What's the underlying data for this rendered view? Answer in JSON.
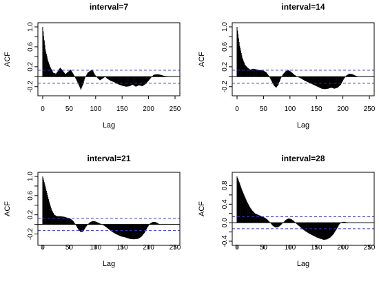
{
  "chart_data": [
    {
      "type": "bar",
      "title": "interval=7",
      "xlabel": "Lag",
      "ylabel": "ACF",
      "xlim": [
        0,
        250
      ],
      "ylim": [
        -0.3,
        1.0
      ],
      "xticks": [
        0,
        50,
        100,
        150,
        200,
        250
      ],
      "yticks": [
        -0.2,
        0.2,
        0.6,
        1.0
      ],
      "yticks_minor": [
        0.0,
        0.4,
        0.8
      ],
      "ci": 0.13,
      "x_max": 240,
      "keypoints": [
        [
          0,
          1.0
        ],
        [
          2,
          0.82
        ],
        [
          5,
          0.55
        ],
        [
          10,
          0.32
        ],
        [
          14,
          0.2
        ],
        [
          20,
          0.08
        ],
        [
          25,
          0.06
        ],
        [
          28,
          0.1
        ],
        [
          33,
          0.18
        ],
        [
          38,
          0.12
        ],
        [
          43,
          0.05
        ],
        [
          48,
          0.1
        ],
        [
          53,
          0.14
        ],
        [
          58,
          0.05
        ],
        [
          63,
          -0.05
        ],
        [
          68,
          -0.16
        ],
        [
          72,
          -0.26
        ],
        [
          76,
          -0.16
        ],
        [
          80,
          -0.02
        ],
        [
          85,
          0.08
        ],
        [
          90,
          0.12
        ],
        [
          94,
          0.14
        ],
        [
          98,
          0.05
        ],
        [
          103,
          -0.02
        ],
        [
          108,
          -0.07
        ],
        [
          113,
          -0.04
        ],
        [
          118,
          0.0
        ],
        [
          122,
          -0.04
        ],
        [
          128,
          -0.08
        ],
        [
          135,
          -0.11
        ],
        [
          142,
          -0.15
        ],
        [
          150,
          -0.18
        ],
        [
          158,
          -0.2
        ],
        [
          164,
          -0.19
        ],
        [
          170,
          -0.16
        ],
        [
          176,
          -0.2
        ],
        [
          182,
          -0.17
        ],
        [
          188,
          -0.19
        ],
        [
          194,
          -0.15
        ],
        [
          200,
          -0.08
        ],
        [
          206,
          0.0
        ],
        [
          210,
          0.04
        ],
        [
          216,
          0.05
        ],
        [
          222,
          0.04
        ],
        [
          228,
          0.02
        ],
        [
          234,
          0.01
        ],
        [
          240,
          0.0
        ]
      ]
    },
    {
      "type": "bar",
      "title": "interval=14",
      "xlabel": "Lag",
      "ylabel": "ACF",
      "xlim": [
        0,
        250
      ],
      "ylim": [
        -0.3,
        1.0
      ],
      "xticks": [
        0,
        50,
        100,
        150,
        200,
        250
      ],
      "yticks": [
        -0.2,
        0.2,
        0.6,
        1.0
      ],
      "yticks_minor": [
        0.0,
        0.4,
        0.8
      ],
      "ci": 0.13,
      "x_max": 230,
      "keypoints": [
        [
          0,
          1.0
        ],
        [
          2,
          0.85
        ],
        [
          5,
          0.62
        ],
        [
          10,
          0.38
        ],
        [
          15,
          0.24
        ],
        [
          20,
          0.18
        ],
        [
          25,
          0.14
        ],
        [
          30,
          0.16
        ],
        [
          35,
          0.15
        ],
        [
          40,
          0.14
        ],
        [
          45,
          0.13
        ],
        [
          50,
          0.12
        ],
        [
          55,
          0.09
        ],
        [
          60,
          0.02
        ],
        [
          65,
          -0.08
        ],
        [
          70,
          -0.18
        ],
        [
          74,
          -0.22
        ],
        [
          78,
          -0.16
        ],
        [
          82,
          -0.05
        ],
        [
          87,
          0.05
        ],
        [
          92,
          0.11
        ],
        [
          97,
          0.13
        ],
        [
          102,
          0.1
        ],
        [
          108,
          0.04
        ],
        [
          114,
          0.0
        ],
        [
          120,
          -0.03
        ],
        [
          128,
          -0.08
        ],
        [
          136,
          -0.12
        ],
        [
          144,
          -0.16
        ],
        [
          152,
          -0.2
        ],
        [
          160,
          -0.24
        ],
        [
          166,
          -0.25
        ],
        [
          172,
          -0.24
        ],
        [
          178,
          -0.22
        ],
        [
          184,
          -0.24
        ],
        [
          190,
          -0.22
        ],
        [
          196,
          -0.16
        ],
        [
          201,
          -0.06
        ],
        [
          206,
          0.02
        ],
        [
          212,
          0.06
        ],
        [
          218,
          0.05
        ],
        [
          224,
          0.02
        ],
        [
          230,
          0.0
        ]
      ]
    },
    {
      "type": "bar",
      "title": "interval=21",
      "xlabel": "Lag",
      "ylabel": "ACF",
      "xlim": [
        0,
        250
      ],
      "ylim": [
        -0.35,
        1.0
      ],
      "xticks": [
        0,
        50,
        100,
        150,
        200,
        250
      ],
      "yticks": [
        -0.2,
        0.2,
        0.6,
        1.0
      ],
      "yticks_minor": [
        0.0,
        0.4,
        0.8
      ],
      "ci": 0.13,
      "x_max": 222,
      "keypoints": [
        [
          0,
          1.0
        ],
        [
          3,
          0.88
        ],
        [
          7,
          0.7
        ],
        [
          12,
          0.48
        ],
        [
          17,
          0.3
        ],
        [
          22,
          0.2
        ],
        [
          27,
          0.17
        ],
        [
          33,
          0.17
        ],
        [
          40,
          0.16
        ],
        [
          46,
          0.14
        ],
        [
          52,
          0.12
        ],
        [
          57,
          0.08
        ],
        [
          62,
          0.0
        ],
        [
          67,
          -0.1
        ],
        [
          72,
          -0.16
        ],
        [
          76,
          -0.15
        ],
        [
          80,
          -0.08
        ],
        [
          85,
          0.0
        ],
        [
          90,
          0.05
        ],
        [
          95,
          0.07
        ],
        [
          100,
          0.06
        ],
        [
          106,
          0.03
        ],
        [
          112,
          0.0
        ],
        [
          118,
          -0.04
        ],
        [
          125,
          -0.1
        ],
        [
          132,
          -0.16
        ],
        [
          140,
          -0.21
        ],
        [
          148,
          -0.25
        ],
        [
          156,
          -0.27
        ],
        [
          164,
          -0.3
        ],
        [
          172,
          -0.31
        ],
        [
          180,
          -0.3
        ],
        [
          186,
          -0.26
        ],
        [
          192,
          -0.18
        ],
        [
          198,
          -0.06
        ],
        [
          203,
          0.02
        ],
        [
          208,
          0.05
        ],
        [
          213,
          0.05
        ],
        [
          218,
          0.02
        ],
        [
          222,
          0.0
        ]
      ]
    },
    {
      "type": "bar",
      "title": "interval=28",
      "xlabel": "Lag",
      "ylabel": "ACF",
      "xlim": [
        0,
        250
      ],
      "ylim": [
        -0.4,
        1.0
      ],
      "xticks": [
        0,
        50,
        100,
        150,
        200,
        250
      ],
      "yticks": [
        -0.4,
        0.0,
        0.4,
        0.8
      ],
      "yticks_minor": [
        -0.2,
        0.2,
        0.6
      ],
      "ci": 0.13,
      "x_max": 212,
      "keypoints": [
        [
          0,
          1.0
        ],
        [
          4,
          0.88
        ],
        [
          9,
          0.72
        ],
        [
          14,
          0.58
        ],
        [
          19,
          0.45
        ],
        [
          24,
          0.34
        ],
        [
          29,
          0.26
        ],
        [
          34,
          0.2
        ],
        [
          40,
          0.17
        ],
        [
          46,
          0.14
        ],
        [
          52,
          0.11
        ],
        [
          57,
          0.07
        ],
        [
          62,
          0.01
        ],
        [
          67,
          -0.06
        ],
        [
          72,
          -0.1
        ],
        [
          77,
          -0.1
        ],
        [
          82,
          -0.06
        ],
        [
          87,
          0.0
        ],
        [
          92,
          0.06
        ],
        [
          97,
          0.09
        ],
        [
          102,
          0.08
        ],
        [
          107,
          0.04
        ],
        [
          112,
          -0.02
        ],
        [
          118,
          -0.08
        ],
        [
          124,
          -0.14
        ],
        [
          130,
          -0.19
        ],
        [
          137,
          -0.24
        ],
        [
          144,
          -0.28
        ],
        [
          151,
          -0.32
        ],
        [
          158,
          -0.35
        ],
        [
          164,
          -0.37
        ],
        [
          170,
          -0.36
        ],
        [
          176,
          -0.32
        ],
        [
          182,
          -0.25
        ],
        [
          188,
          -0.14
        ],
        [
          193,
          -0.04
        ],
        [
          197,
          0.01
        ],
        [
          202,
          0.02
        ],
        [
          207,
          0.01
        ],
        [
          212,
          0.0
        ]
      ]
    }
  ]
}
